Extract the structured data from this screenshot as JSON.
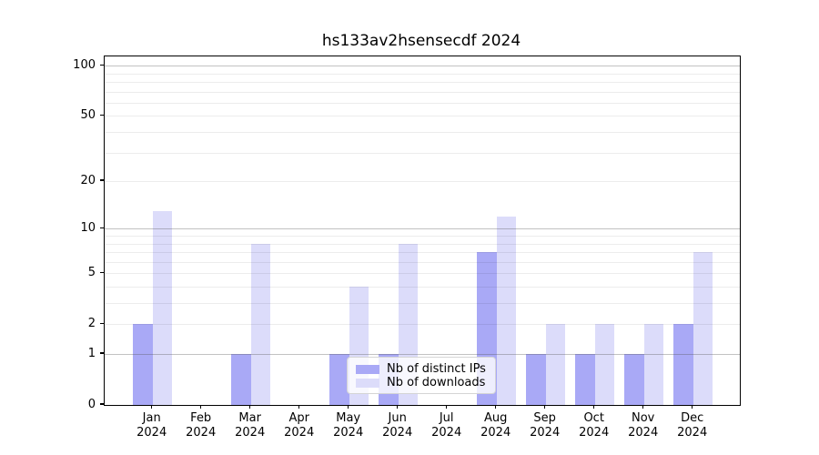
{
  "title": "hs133av2hsensecdf 2024",
  "chart_data": {
    "type": "bar",
    "title": "hs133av2hsensecdf 2024",
    "categories": [
      "Jan",
      "Feb",
      "Mar",
      "Apr",
      "May",
      "Jun",
      "Jul",
      "Aug",
      "Sep",
      "Oct",
      "Nov",
      "Dec"
    ],
    "year_label": "2024",
    "series": [
      {
        "name": "Nb of distinct IPs",
        "color": "#a9a9f6",
        "values": [
          2,
          0,
          1,
          0,
          1,
          1,
          0,
          7,
          1,
          1,
          1,
          2
        ]
      },
      {
        "name": "Nb of downloads",
        "color": "#dcdcfa",
        "values": [
          13,
          0,
          8,
          0,
          4,
          8,
          0,
          12,
          2,
          2,
          2,
          7
        ]
      }
    ],
    "xlabel": "",
    "ylabel": "",
    "y_scale": "log10(1+v)",
    "y_ticks": [
      0,
      1,
      2,
      5,
      10,
      20,
      50,
      100
    ],
    "y_major_gridlines": [
      1,
      10,
      100
    ],
    "y_minor_gridlines": [
      2,
      3,
      4,
      5,
      6,
      7,
      8,
      9,
      20,
      30,
      40,
      50,
      60,
      70,
      80,
      90
    ],
    "ylim_top_value": 113,
    "grid": true,
    "legend_position": "lower center"
  }
}
